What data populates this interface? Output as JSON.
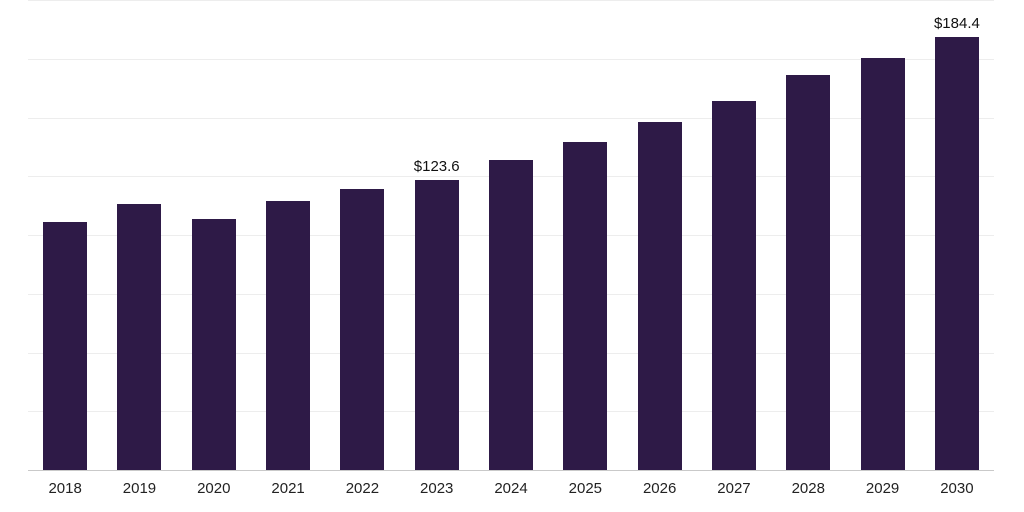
{
  "chart_data": {
    "type": "bar",
    "title": "",
    "xlabel": "",
    "ylabel": "",
    "categories": [
      "2018",
      "2019",
      "2020",
      "2021",
      "2022",
      "2023",
      "2024",
      "2025",
      "2026",
      "2027",
      "2028",
      "2029",
      "2030"
    ],
    "values": [
      105.6,
      113.2,
      106.8,
      114.3,
      119.5,
      123.6,
      131.8,
      139.6,
      148.0,
      157.0,
      168.0,
      175.3,
      184.4
    ],
    "data_labels": [
      {
        "index": 5,
        "text": "$123.6"
      },
      {
        "index": 12,
        "text": "$184.4"
      }
    ],
    "ylim": [
      0,
      200
    ],
    "grid_step": 25,
    "grid": "horizontal",
    "legend": "none",
    "y_axis_labels_visible": false
  },
  "colors": {
    "bar": "#2E1A47",
    "gridline": "#EDEDED",
    "axis_line": "#C9C9C9",
    "tick_label": "#222222",
    "data_label": "#111111",
    "background": "#FFFFFF"
  }
}
